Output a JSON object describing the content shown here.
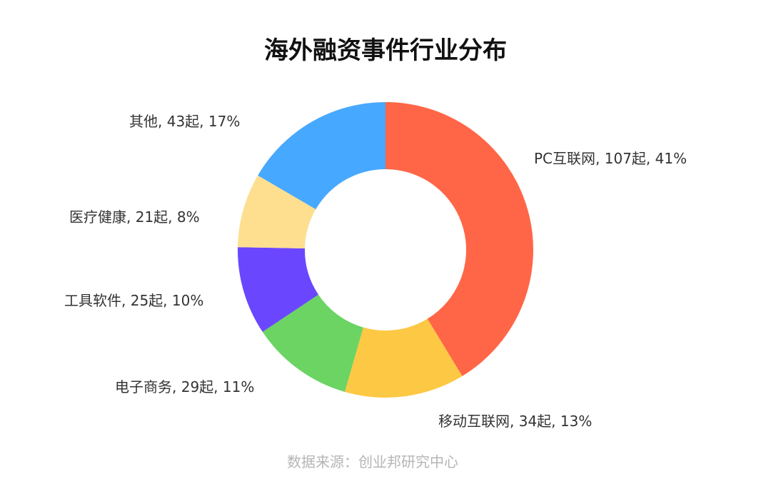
{
  "chart_data": {
    "type": "pie",
    "style": "donut",
    "title": "海外融资事件行业分布",
    "source": "数据来源：创业邦研究中心",
    "slices": [
      {
        "category": "PC互联网",
        "value": 107,
        "percent": 41,
        "label": "PC互联网, 107起, 41%",
        "color": "#ff6647"
      },
      {
        "category": "移动互联网",
        "value": 34,
        "percent": 13,
        "label": "移动互联网, 34起, 13%",
        "color": "#fdc843"
      },
      {
        "category": "电子商务",
        "value": 29,
        "percent": 11,
        "label": "电子商务, 29起, 11%",
        "color": "#6bd463"
      },
      {
        "category": "工具软件",
        "value": 25,
        "percent": 10,
        "label": "工具软件, 25起, 10%",
        "color": "#6a47ff"
      },
      {
        "category": "医疗健康",
        "value": 21,
        "percent": 8,
        "label": "医疗健康, 21起, 8%",
        "color": "#fddf8f"
      },
      {
        "category": "其他",
        "value": 43,
        "percent": 17,
        "label": "其他, 43起, 17%",
        "color": "#47a8ff"
      }
    ]
  }
}
